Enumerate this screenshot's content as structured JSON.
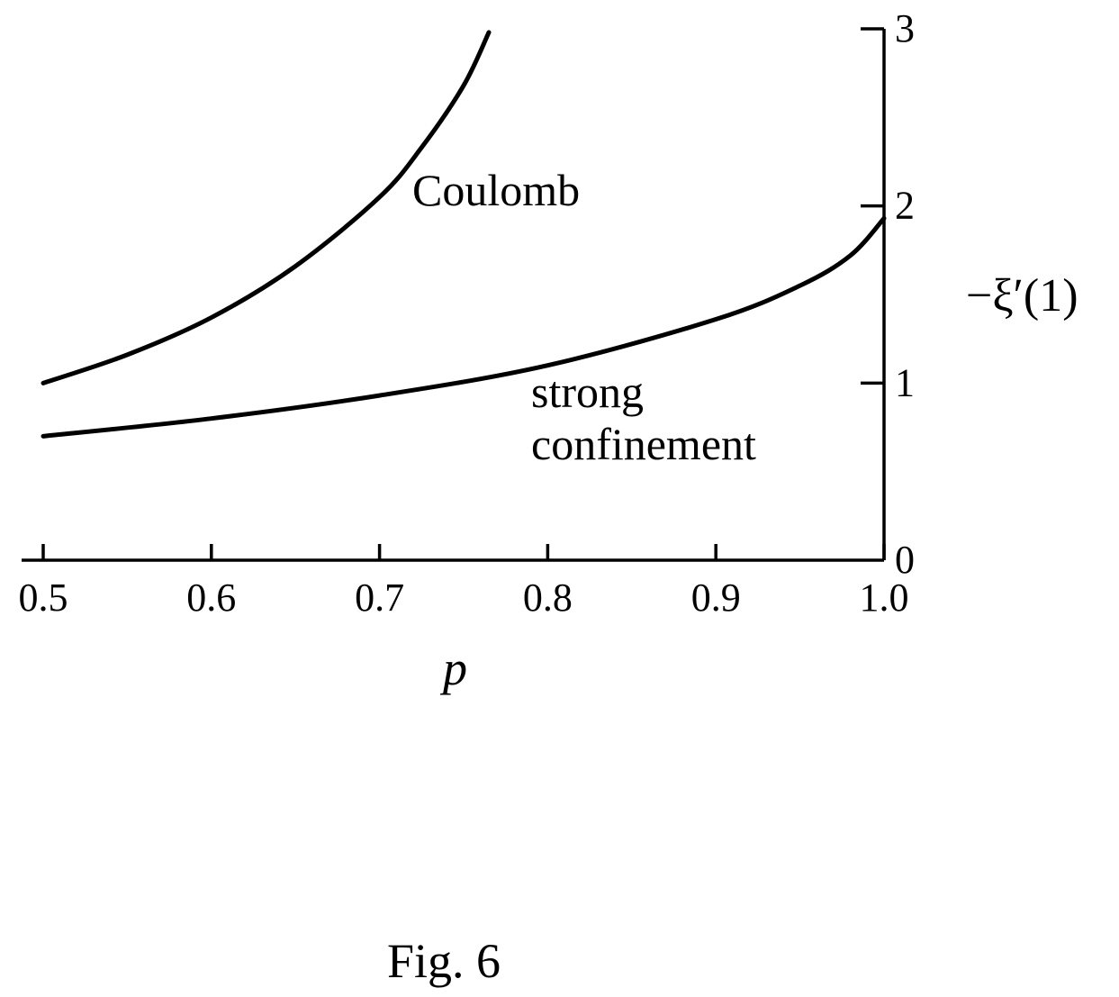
{
  "chart_data": {
    "type": "line",
    "xlabel": "p",
    "ylabel": "−ξ′(1)",
    "xlim": [
      0.5,
      1.0
    ],
    "ylim": [
      0,
      3
    ],
    "x_ticks": [
      "0.5",
      "0.6",
      "0.7",
      "0.8",
      "0.9",
      "1.0"
    ],
    "y_ticks": [
      "0",
      "1",
      "2",
      "3"
    ],
    "y_axis_position": "right",
    "grid": false,
    "caption": "Fig. 6",
    "annotations": [
      {
        "text": "Coulomb",
        "series": "Coulomb"
      },
      {
        "text": "strong",
        "series": "strong confinement"
      },
      {
        "text": "confinement",
        "series": "strong confinement"
      }
    ],
    "series": [
      {
        "name": "Coulomb",
        "x": [
          0.5,
          0.55,
          0.6,
          0.65,
          0.7,
          0.725,
          0.75,
          0.765
        ],
        "y": [
          1.0,
          1.16,
          1.37,
          1.66,
          2.05,
          2.33,
          2.68,
          2.98
        ]
      },
      {
        "name": "strong confinement",
        "x": [
          0.5,
          0.6,
          0.7,
          0.8,
          0.9,
          0.95,
          0.98,
          1.0
        ],
        "y": [
          0.7,
          0.8,
          0.93,
          1.1,
          1.36,
          1.55,
          1.72,
          1.93
        ]
      }
    ]
  }
}
